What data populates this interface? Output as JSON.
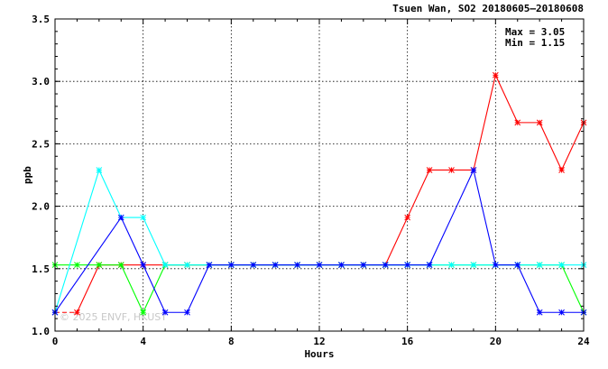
{
  "chart_data": {
    "type": "line",
    "title": "Tsuen Wan, SO2 20180605—20180608",
    "xlabel": "Hours",
    "ylabel": "ppb",
    "xlim": [
      0,
      24
    ],
    "ylim": [
      1.0,
      3.5
    ],
    "xticks": [
      0,
      4,
      8,
      12,
      16,
      20,
      24
    ],
    "yticks": [
      1.0,
      1.5,
      2.0,
      2.5,
      3.0,
      3.5
    ],
    "xtick_labels": [
      "0",
      "4",
      "8",
      "12",
      "16",
      "20",
      "24"
    ],
    "ytick_labels": [
      "1.0",
      "1.5",
      "2.0",
      "2.5",
      "3.0",
      "3.5"
    ],
    "grid": true,
    "stats": {
      "max": "Max = 3.05",
      "min": "Min = 1.15"
    },
    "watermark": "© 2025  ENVF, HKUST",
    "series": [
      {
        "color": "#ff0000",
        "x": [
          0,
          1,
          2,
          3,
          4,
          5,
          6,
          7,
          8,
          9,
          10,
          11,
          12,
          13,
          14,
          15,
          16,
          17,
          18,
          19,
          20,
          21,
          22,
          23,
          24
        ],
        "y": [
          1.15,
          1.15,
          1.53,
          1.53,
          1.53,
          1.53,
          1.53,
          1.53,
          1.53,
          1.53,
          1.53,
          1.53,
          1.53,
          1.53,
          1.53,
          1.53,
          1.91,
          2.29,
          2.29,
          2.29,
          3.05,
          2.67,
          2.67,
          2.29,
          2.67
        ],
        "dashed_first_segment": true
      },
      {
        "color": "#00ff00",
        "x": [
          0,
          1,
          2,
          3,
          4,
          5,
          6,
          7,
          8,
          9,
          10,
          11,
          12,
          13,
          14,
          15,
          16,
          17,
          18,
          19,
          20,
          21,
          22,
          23,
          24
        ],
        "y": [
          1.53,
          1.53,
          1.53,
          1.53,
          1.15,
          1.53,
          1.53,
          1.53,
          1.53,
          1.53,
          1.53,
          1.53,
          1.53,
          1.53,
          1.53,
          1.53,
          1.53,
          1.53,
          1.53,
          1.53,
          1.53,
          1.53,
          1.53,
          1.53,
          1.15
        ]
      },
      {
        "color": "#00ffff",
        "x": [
          0,
          2,
          3,
          4,
          5,
          6,
          7,
          8,
          9,
          10,
          11,
          12,
          13,
          14,
          15,
          16,
          17,
          18,
          19,
          20,
          21,
          22,
          23,
          24
        ],
        "y": [
          1.15,
          2.29,
          1.91,
          1.91,
          1.53,
          1.53,
          1.53,
          1.53,
          1.53,
          1.53,
          1.53,
          1.53,
          1.53,
          1.53,
          1.53,
          1.53,
          1.53,
          1.53,
          1.53,
          1.53,
          1.53,
          1.53,
          1.53,
          1.53
        ]
      },
      {
        "color": "#0000ff",
        "x": [
          0,
          3,
          4,
          5,
          6,
          7,
          8,
          9,
          10,
          11,
          12,
          13,
          14,
          15,
          16,
          17,
          19,
          20,
          21,
          22,
          23,
          24
        ],
        "y": [
          1.15,
          1.91,
          1.53,
          1.15,
          1.15,
          1.53,
          1.53,
          1.53,
          1.53,
          1.53,
          1.53,
          1.53,
          1.53,
          1.53,
          1.53,
          1.53,
          2.29,
          1.53,
          1.53,
          1.15,
          1.15,
          1.15
        ]
      }
    ]
  }
}
